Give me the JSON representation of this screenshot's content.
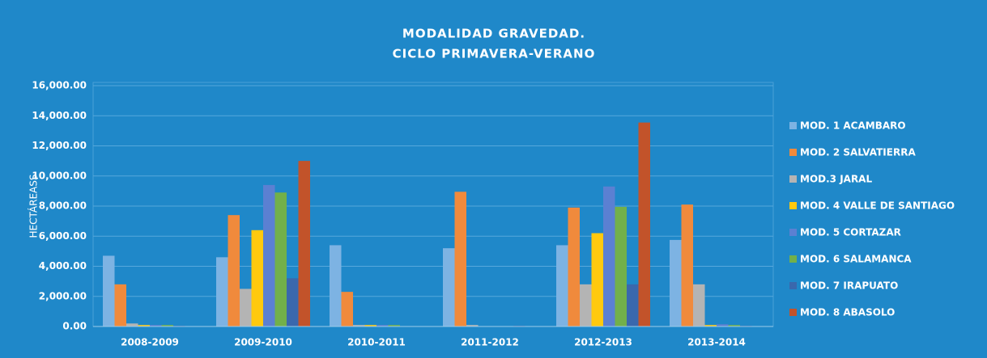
{
  "chart_data": {
    "type": "bar",
    "title": "MODALIDAD GRAVEDAD.",
    "subtitle": "CICLO PRIMAVERA-VERANO",
    "y_label": "HECTÁREASS",
    "categories": [
      "2008-2009",
      "2009-2010",
      "2010-2011",
      "2011-2012",
      "2012-2013",
      "2013-2014"
    ],
    "series": [
      {
        "name": "MOD. 1 ACAMBARO",
        "color": "#7db3e3",
        "values": [
          4700,
          4600,
          5400,
          5200,
          5400,
          5750
        ]
      },
      {
        "name": "MOD. 2 SALVATIERRA",
        "color": "#f08a3c",
        "values": [
          2800,
          7400,
          2300,
          8950,
          7900,
          8100
        ]
      },
      {
        "name": "MOD.3 JARAL",
        "color": "#b4b4b4",
        "values": [
          200,
          2500,
          100,
          100,
          2800,
          2800
        ]
      },
      {
        "name": "MOD. 4  VALLE DE SANTIAGO",
        "color": "#ffc90e",
        "values": [
          100,
          6400,
          100,
          20,
          6200,
          100
        ]
      },
      {
        "name": "MOD. 5 CORTAZAR",
        "color": "#5b80d2",
        "values": [
          100,
          9400,
          100,
          10,
          9300,
          150
        ]
      },
      {
        "name": "MOD. 6 SALAMANCA",
        "color": "#72b04a",
        "values": [
          100,
          8900,
          100,
          20,
          7950,
          100
        ]
      },
      {
        "name": "MOD. 7 IRAPUATO",
        "color": "#3a68ad",
        "values": [
          50,
          3200,
          20,
          50,
          2800,
          50
        ]
      },
      {
        "name": "MOD. 8 ABASOLO",
        "color": "#c2532a",
        "values": [
          20,
          11000,
          10,
          10,
          13550,
          0
        ]
      }
    ],
    "ylim": [
      0,
      16000
    ],
    "yticks": [
      {
        "value": 0,
        "label": "0.00"
      },
      {
        "value": 2000,
        "label": "2,000.00"
      },
      {
        "value": 4000,
        "label": "4,000.00"
      },
      {
        "value": 6000,
        "label": "6,000.00"
      },
      {
        "value": 8000,
        "label": "8,000.00"
      },
      {
        "value": 10000,
        "label": "10,000.00"
      },
      {
        "value": 12000,
        "label": "12,000.00"
      },
      {
        "value": 14000,
        "label": "14,000.00"
      },
      {
        "value": 16000,
        "label": "16,000.00"
      }
    ],
    "grid": true,
    "legend": "right"
  }
}
